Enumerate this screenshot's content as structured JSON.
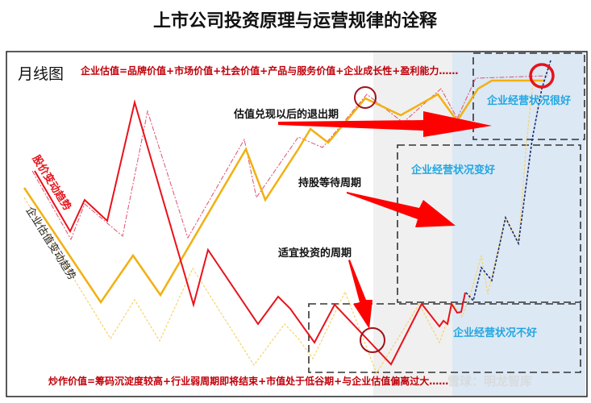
{
  "title": "上市公司投资原理与运营规律的诠释",
  "chart_label": "月线图",
  "valuation_formula": "企业估值=品牌价值+市场价值+社会价值+产品与服务价值+企业成长性+盈利能力……",
  "speculation_formula": "炒作价值=筹码沉淀度较高+行业弱周期即将结束+市值处于低谷期+与企业估值偏离过大……",
  "series_labels": {
    "stock_price": "股价变动趋势",
    "valuation": "企业估值变动趋势"
  },
  "phases": {
    "exit": "估值兑现以后的退出期",
    "hold": "持股等待周期",
    "invest": "适宜投资的周期"
  },
  "business_states": {
    "very_good": "企业经营状况很好",
    "improving": "企业经营状况变好",
    "bad": "企业经营状况不好"
  },
  "watermark": "雪球：明龙智库",
  "colors": {
    "stock_price": "#e8121c",
    "valuation": "#f2b011",
    "highlight_blue": "#22a6e0",
    "gray_zone": "#f0f0f0",
    "blue_zone": "#dce8f4"
  }
}
